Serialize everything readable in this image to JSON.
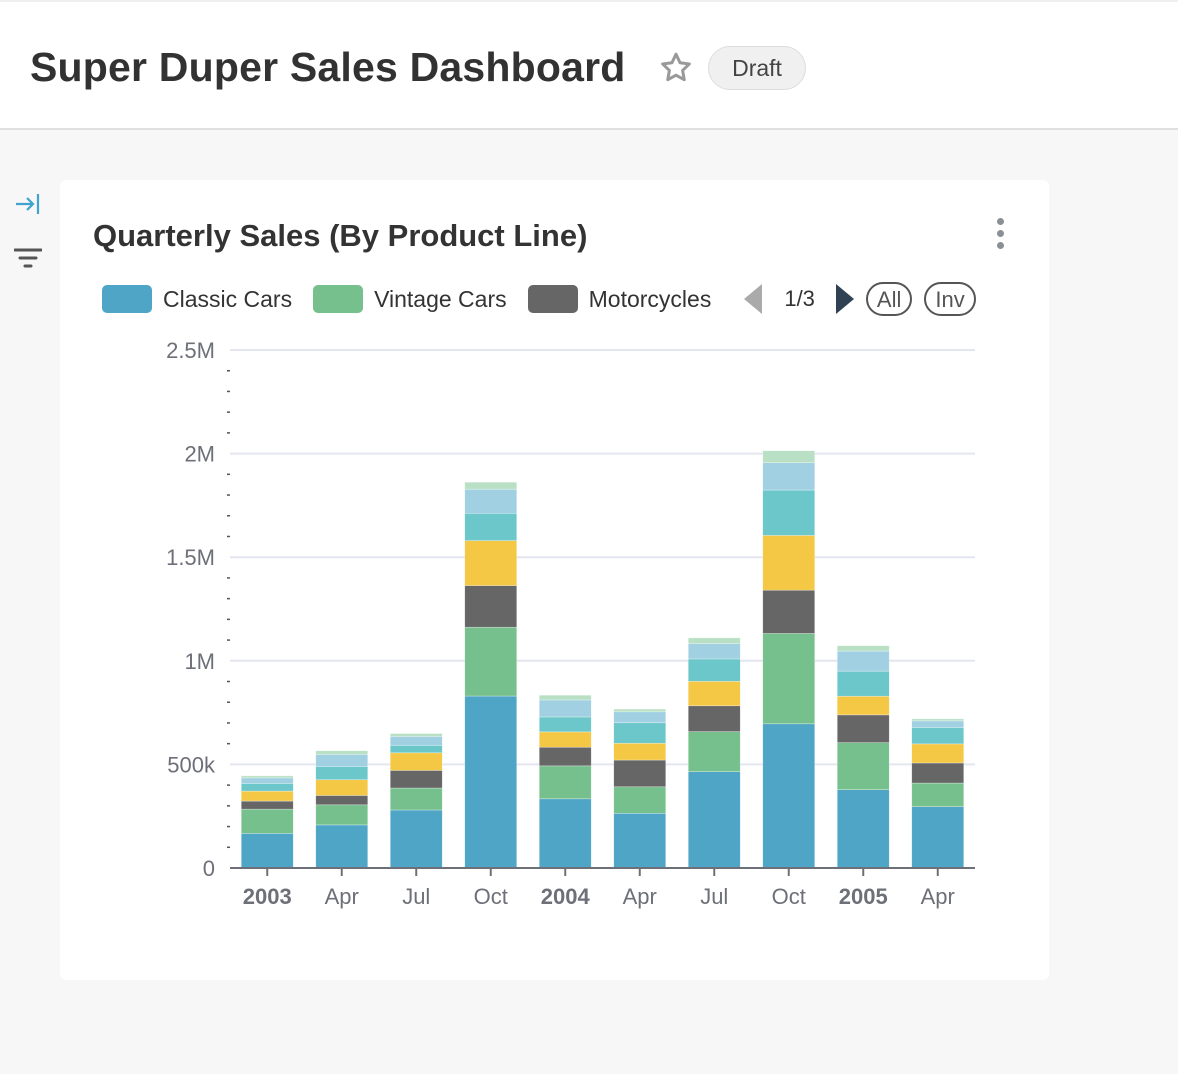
{
  "header": {
    "title": "Super Duper Sales Dashboard",
    "badge": "Draft",
    "star_icon": "star-outline-icon"
  },
  "sidebar": {
    "icons": [
      "expand-right-icon",
      "filter-icon"
    ]
  },
  "card": {
    "title": "Quarterly Sales (By Product Line)",
    "menu_icon": "vertical-ellipsis-icon",
    "legend": {
      "items": [
        {
          "label": "Classic Cars",
          "color": "#4fa5c6"
        },
        {
          "label": "Vintage Cars",
          "color": "#76c08d"
        },
        {
          "label": "Motorcycles",
          "color": "#666666"
        }
      ],
      "page": "1/3",
      "all_label": "All",
      "inv_label": "Inv"
    }
  },
  "chart_data": {
    "type": "bar",
    "stacked": true,
    "title": "Quarterly Sales (By Product Line)",
    "categories": [
      "2003",
      "Apr",
      "Jul",
      "Oct",
      "2004",
      "Apr",
      "Jul",
      "Oct",
      "2005",
      "Apr"
    ],
    "bold_categories": [
      "2003",
      "2004",
      "2005"
    ],
    "ylim": [
      0,
      2500000
    ],
    "yticks": [
      0,
      500000,
      1000000,
      1500000,
      2000000,
      2500000
    ],
    "ytick_labels": [
      "0",
      "500k",
      "1M",
      "1.5M",
      "2M",
      "2.5M"
    ],
    "grid": true,
    "legend_placement": "top-left",
    "series": [
      {
        "name": "Classic Cars",
        "color": "#4fa5c6",
        "values": [
          167000,
          208000,
          280000,
          830000,
          334000,
          264000,
          465000,
          696000,
          378000,
          296000
        ]
      },
      {
        "name": "Vintage Cars",
        "color": "#76c08d",
        "values": [
          117000,
          97000,
          106000,
          332000,
          159000,
          128000,
          193000,
          436000,
          227000,
          114000
        ]
      },
      {
        "name": "Motorcycles",
        "color": "#666666",
        "values": [
          39000,
          45000,
          85000,
          201000,
          90000,
          129000,
          125000,
          209000,
          134000,
          97000
        ]
      },
      {
        "color": "#f4c744",
        "values": [
          48000,
          76000,
          85000,
          217000,
          74000,
          81000,
          118000,
          264000,
          90000,
          92000
        ]
      },
      {
        "color": "#6bc7c9",
        "values": [
          37000,
          64000,
          36000,
          132000,
          72000,
          99000,
          108000,
          219000,
          121000,
          79000
        ]
      },
      {
        "color": "#a1d0e2",
        "values": [
          27000,
          58000,
          43000,
          116000,
          82000,
          53000,
          74000,
          132000,
          97000,
          32000
        ]
      },
      {
        "color": "#b9e0c5",
        "values": [
          10000,
          18000,
          14000,
          34000,
          23000,
          13000,
          28000,
          58000,
          26000,
          10000
        ]
      }
    ]
  }
}
